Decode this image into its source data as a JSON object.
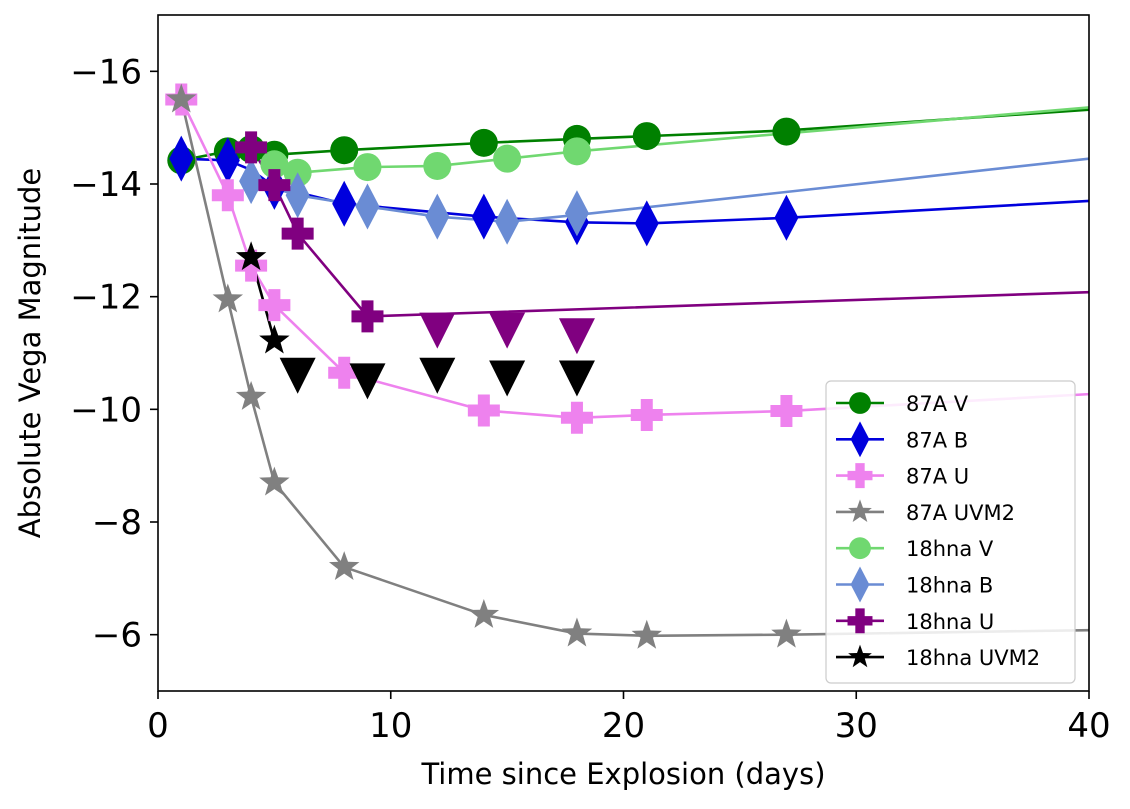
{
  "chart_data": {
    "type": "line",
    "title": "",
    "xlabel": "Time since Explosion (days)",
    "ylabel": "Absolute Vega Magnitude",
    "xlim": [
      0,
      40
    ],
    "ylim": [
      -5,
      -17
    ],
    "y_inverted": true,
    "grid": false,
    "legend_position": "lower-right",
    "x_ticks": [
      {
        "value": 0,
        "label": "0"
      },
      {
        "value": 10,
        "label": "10"
      },
      {
        "value": 20,
        "label": "20"
      },
      {
        "value": 30,
        "label": "30"
      },
      {
        "value": 40,
        "label": "40"
      }
    ],
    "y_ticks": [
      {
        "value": -16,
        "label": "−16"
      },
      {
        "value": -14,
        "label": "−14"
      },
      {
        "value": -12,
        "label": "−12"
      },
      {
        "value": -10,
        "label": "−10"
      },
      {
        "value": -8,
        "label": "−8"
      },
      {
        "value": -6,
        "label": "−6"
      }
    ],
    "series": [
      {
        "name": "87A V",
        "color": "#008000",
        "marker": "circle",
        "line": [
          [
            1,
            -14.42
          ],
          [
            3,
            -14.58
          ],
          [
            4,
            -14.58
          ],
          [
            5,
            -14.52
          ],
          [
            8,
            -14.6
          ],
          [
            14,
            -14.73
          ],
          [
            18,
            -14.8
          ],
          [
            21,
            -14.85
          ],
          [
            27,
            -14.95
          ],
          [
            40,
            -15.32
          ]
        ],
        "points": [
          [
            1,
            -14.42
          ],
          [
            3,
            -14.58
          ],
          [
            4,
            -14.62
          ],
          [
            5,
            -14.52
          ],
          [
            8,
            -14.6
          ],
          [
            14,
            -14.73
          ],
          [
            18,
            -14.8
          ],
          [
            21,
            -14.85
          ],
          [
            27,
            -14.93
          ]
        ]
      },
      {
        "name": "87A B",
        "color": "#0000dd",
        "marker": "thin_diamond",
        "line": [
          [
            1,
            -14.45
          ],
          [
            3,
            -14.42
          ],
          [
            4,
            -14.25
          ],
          [
            5,
            -13.95
          ],
          [
            8,
            -13.65
          ],
          [
            14,
            -13.42
          ],
          [
            18,
            -13.32
          ],
          [
            21,
            -13.3
          ],
          [
            27,
            -13.4
          ],
          [
            40,
            -13.7
          ]
        ],
        "points": [
          [
            1,
            -14.45
          ],
          [
            3,
            -14.42
          ],
          [
            5,
            -13.95
          ],
          [
            8,
            -13.65
          ],
          [
            14,
            -13.42
          ],
          [
            18,
            -13.32
          ],
          [
            21,
            -13.3
          ],
          [
            27,
            -13.4
          ]
        ]
      },
      {
        "name": "87A U",
        "color": "#ee82ee",
        "marker": "plus",
        "line": [
          [
            1,
            -15.5
          ],
          [
            3,
            -13.8
          ],
          [
            4,
            -12.55
          ],
          [
            5,
            -11.85
          ],
          [
            8,
            -10.65
          ],
          [
            14,
            -9.98
          ],
          [
            18,
            -9.85
          ],
          [
            21,
            -9.9
          ],
          [
            27,
            -9.97
          ],
          [
            40,
            -10.27
          ]
        ],
        "points": [
          [
            1,
            -15.5
          ],
          [
            3,
            -13.8
          ],
          [
            4,
            -12.55
          ],
          [
            5,
            -11.85
          ],
          [
            8,
            -10.65
          ],
          [
            14,
            -9.98
          ],
          [
            18,
            -9.85
          ],
          [
            21,
            -9.9
          ],
          [
            27,
            -9.97
          ]
        ]
      },
      {
        "name": "87A UVM2",
        "color": "#808080",
        "marker": "star",
        "line": [
          [
            1,
            -15.5
          ],
          [
            3,
            -11.95
          ],
          [
            4,
            -10.22
          ],
          [
            5,
            -8.7
          ],
          [
            8,
            -7.2
          ],
          [
            14,
            -6.35
          ],
          [
            18,
            -6.02
          ],
          [
            21,
            -5.98
          ],
          [
            27,
            -6.0
          ],
          [
            40,
            -6.08
          ]
        ],
        "points": [
          [
            1,
            -15.5
          ],
          [
            3,
            -11.95
          ],
          [
            4,
            -10.22
          ],
          [
            5,
            -8.7
          ],
          [
            8,
            -7.2
          ],
          [
            14,
            -6.35
          ],
          [
            18,
            -6.02
          ],
          [
            21,
            -5.98
          ],
          [
            27,
            -6.0
          ]
        ]
      },
      {
        "name": "18hna V",
        "color": "#70d870",
        "marker": "circle",
        "line": [
          [
            5,
            -14.35
          ],
          [
            6,
            -14.2
          ],
          [
            9,
            -14.3
          ],
          [
            12,
            -14.32
          ],
          [
            15,
            -14.45
          ],
          [
            18,
            -14.58
          ],
          [
            40,
            -15.36
          ]
        ],
        "points": [
          [
            5,
            -14.35
          ],
          [
            6,
            -14.2
          ],
          [
            9,
            -14.3
          ],
          [
            12,
            -14.32
          ],
          [
            15,
            -14.45
          ],
          [
            18,
            -14.58
          ]
        ]
      },
      {
        "name": "18hna B",
        "color": "#6a8cd4",
        "marker": "thin_diamond",
        "line": [
          [
            4,
            -14.05
          ],
          [
            6,
            -13.8
          ],
          [
            9,
            -13.6
          ],
          [
            12,
            -13.42
          ],
          [
            15,
            -13.33
          ],
          [
            18,
            -13.45
          ],
          [
            40,
            -14.45
          ]
        ],
        "points": [
          [
            4,
            -14.05
          ],
          [
            6,
            -13.8
          ],
          [
            9,
            -13.6
          ],
          [
            12,
            -13.42
          ],
          [
            15,
            -13.33
          ],
          [
            18,
            -13.48
          ]
        ]
      },
      {
        "name": "18hna U",
        "color": "#800080",
        "marker": "plus",
        "line": [
          [
            4,
            -14.65
          ],
          [
            5,
            -13.98
          ],
          [
            6,
            -13.12
          ],
          [
            9,
            -11.65
          ],
          [
            40,
            -12.08
          ]
        ],
        "points": [
          [
            4,
            -14.65
          ],
          [
            5,
            -13.98
          ],
          [
            6,
            -13.12
          ],
          [
            9,
            -11.65
          ]
        ]
      },
      {
        "name": "18hna UVM2",
        "color": "#000000",
        "marker": "star",
        "line": [
          [
            4,
            -12.7
          ],
          [
            5,
            -11.22
          ]
        ],
        "points": [
          [
            4,
            -12.7
          ],
          [
            5,
            -11.22
          ]
        ]
      }
    ],
    "upper_limits": [
      {
        "series": "18hna U",
        "color": "#800080",
        "marker": "triangle_down",
        "points": [
          [
            12,
            -11.45
          ],
          [
            15,
            -11.45
          ],
          [
            18,
            -11.35
          ]
        ]
      },
      {
        "series": "18hna UVM2",
        "color": "#000000",
        "marker": "triangle_down",
        "points": [
          [
            6,
            -10.65
          ],
          [
            9,
            -10.55
          ],
          [
            12,
            -10.65
          ],
          [
            15,
            -10.6
          ],
          [
            18,
            -10.6
          ]
        ]
      }
    ]
  }
}
